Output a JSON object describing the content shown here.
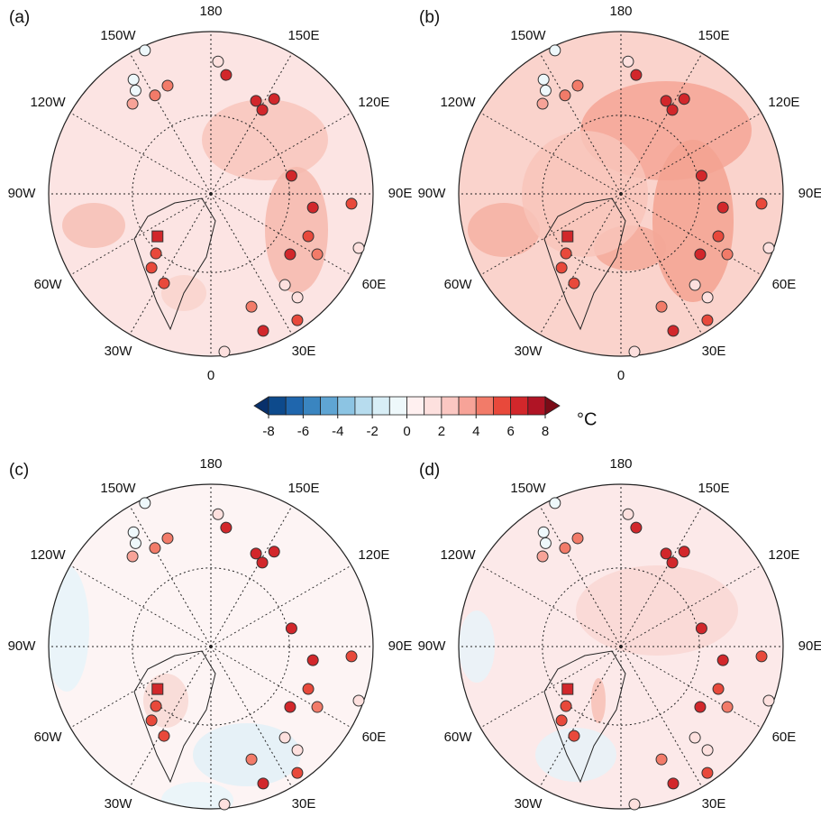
{
  "panels": [
    {
      "label": "(a)"
    },
    {
      "label": "(b)"
    },
    {
      "label": "(c)"
    },
    {
      "label": "(d)"
    }
  ],
  "map_lat_bound": 50,
  "parallels": [
    70
  ],
  "lon_labels": [
    {
      "lon": 180,
      "label": "180"
    },
    {
      "lon": 150,
      "label": "150E"
    },
    {
      "lon": 120,
      "label": "120E"
    },
    {
      "lon": 90,
      "label": "90E"
    },
    {
      "lon": 60,
      "label": "60E"
    },
    {
      "lon": 30,
      "label": "30E"
    },
    {
      "lon": 0,
      "label": "0"
    },
    {
      "lon": -30,
      "label": "30W"
    },
    {
      "lon": -60,
      "label": "60W"
    },
    {
      "lon": -90,
      "label": "90W"
    },
    {
      "lon": -120,
      "label": "120W"
    },
    {
      "lon": -150,
      "label": "150W"
    }
  ],
  "stations": [
    {
      "lon": -155.3,
      "lat": 51,
      "value": -0.5
    },
    {
      "lon": -145.9,
      "lat": 55.6,
      "value": -0.5
    },
    {
      "lon": -143.9,
      "lat": 58,
      "value": -0.3
    },
    {
      "lon": -139,
      "lat": 60,
      "value": 3.5
    },
    {
      "lon": -150.4,
      "lat": 61.5,
      "value": 4
    },
    {
      "lon": -158.2,
      "lat": 60.7,
      "value": 4
    },
    {
      "lon": 176.9,
      "lat": 56.9,
      "value": 1.5
    },
    {
      "lon": 172.7,
      "lat": 59.9,
      "value": 6.5
    },
    {
      "lon": 154.1,
      "lat": 63.9,
      "value": 6.5
    },
    {
      "lon": 148.5,
      "lat": 65.1,
      "value": 6.5
    },
    {
      "lon": 146.3,
      "lat": 61.3,
      "value": 6
    },
    {
      "lon": 102.7,
      "lat": 69,
      "value": 6.5
    },
    {
      "lon": 82.4,
      "lat": 64,
      "value": 6
    },
    {
      "lon": 86,
      "lat": 54.9,
      "value": 5
    },
    {
      "lon": 66.5,
      "lat": 63.2,
      "value": 5
    },
    {
      "lon": 52.7,
      "lat": 64.8,
      "value": 6
    },
    {
      "lon": 60.4,
      "lat": 59.3,
      "value": 4.5
    },
    {
      "lon": 69.9,
      "lat": 51.1,
      "value": 1.5
    },
    {
      "lon": 39.1,
      "lat": 60.5,
      "value": 1.5
    },
    {
      "lon": 39.9,
      "lat": 56.3,
      "value": 1.5
    },
    {
      "lon": 19.8,
      "lat": 59.9,
      "value": 4
    },
    {
      "lon": 34.4,
      "lat": 52.1,
      "value": 5
    },
    {
      "lon": 20.9,
      "lat": 53.6,
      "value": 6
    },
    {
      "lon": 4.9,
      "lat": 50.9,
      "value": 1.5
    },
    {
      "lon": -51.5,
      "lat": 72.6,
      "value": 6.5,
      "marker": "square"
    },
    {
      "lon": -42.7,
      "lat": 69.4,
      "value": 5
    },
    {
      "lon": -38.8,
      "lat": 66,
      "value": 5
    },
    {
      "lon": -27.7,
      "lat": 64.5,
      "value": 5
    }
  ],
  "colorbar": {
    "levels": [
      -8,
      -7,
      -6,
      -5,
      -4,
      -3,
      -2,
      -1,
      0,
      1,
      2,
      3,
      4,
      5,
      6,
      7,
      8
    ],
    "ticks": [
      -8,
      -6,
      -4,
      -2,
      0,
      2,
      4,
      6,
      8
    ],
    "colors": [
      "#08306b",
      "#0d4a8c",
      "#1f66ad",
      "#3a85c0",
      "#5fa5d3",
      "#8cc4e3",
      "#b7dcee",
      "#d8eef6",
      "#eef8fb",
      "#fff0f0",
      "#fde0de",
      "#fbc7c2",
      "#f7a398",
      "#f27b69",
      "#e8493b",
      "#d2272b",
      "#b01425",
      "#7a0b17"
    ],
    "unit": "°C"
  }
}
